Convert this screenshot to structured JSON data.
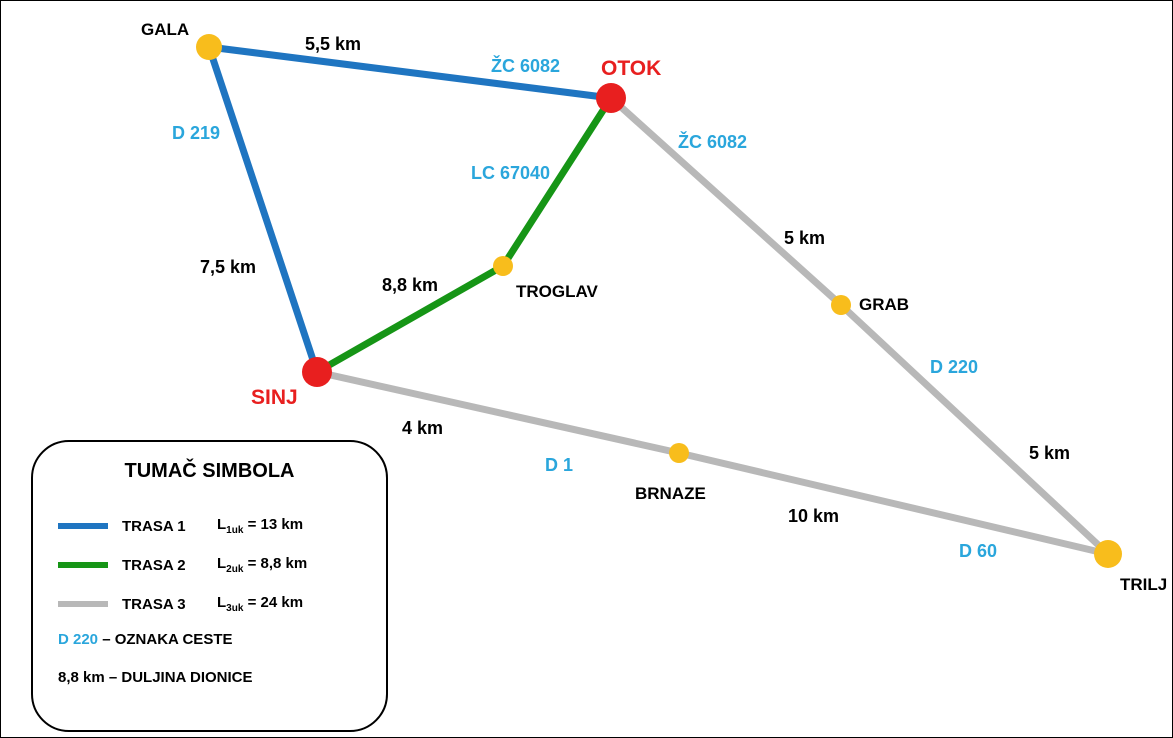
{
  "colors": {
    "route1": "#1f75c1",
    "route2": "#169516",
    "route3": "#b8b8b8",
    "road_label": "#2aa6dc",
    "city_red": "#e81f1f",
    "node_yellow": "#f8bd1c"
  },
  "nodes": {
    "gala": "GALA",
    "otok": "OTOK",
    "sinj": "SINJ",
    "troglav": "TROGLAV",
    "grab": "GRAB",
    "brnaze": "BRNAZE",
    "trilj": "TRILJ"
  },
  "roads": {
    "gala_otok": "ŽC 6082",
    "gala_sinj": "D 219",
    "otok_troglav": "LC 67040",
    "otok_grab": "ŽC 6082",
    "grab_trilj": "D 220",
    "sinj_brnaze": "D 1",
    "brnaze_trilj": "D 60"
  },
  "distances": {
    "gala_otok": "5,5 km",
    "gala_sinj": "7,5 km",
    "sinj_troglav": "8,8 km",
    "otok_grab": "5 km",
    "grab_trilj": "5 km",
    "sinj_brnaze": "4 km",
    "brnaze_trilj": "10 km"
  },
  "legend": {
    "title": "TUMAČ SIMBOLA",
    "items": [
      {
        "name": "TRASA 1",
        "L": "L",
        "sub": "1uk",
        "value": " = 13 km"
      },
      {
        "name": "TRASA 2",
        "L": "L",
        "sub": "2uk",
        "value": " = 8,8 km"
      },
      {
        "name": "TRASA 3",
        "L": "L",
        "sub": "3uk",
        "value": " = 24 km"
      }
    ],
    "road_example": "D 220",
    "road_desc": " – OZNAKA CESTE",
    "dist_example": "8,8 km",
    "dist_desc": " – DULJINA DIONICE"
  }
}
